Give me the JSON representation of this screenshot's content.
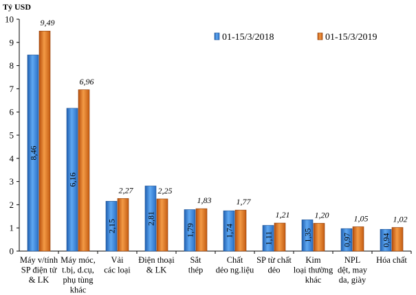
{
  "chart_data": {
    "type": "bar",
    "unit_label": "Tỷ USD",
    "ylim": [
      0,
      10
    ],
    "yticks": [
      "0",
      "1",
      "2",
      "3",
      "4",
      "5",
      "6",
      "7",
      "8",
      "9",
      "10"
    ],
    "grid": false,
    "legend_position": "top-right",
    "categories": [
      [
        "Máy v/tính",
        "SP điện tử",
        "& LK"
      ],
      [
        "Máy móc,",
        "t.bị, d.cụ,",
        "phụ tùng",
        "khác"
      ],
      [
        "Vải",
        "các loại"
      ],
      [
        "Điện thoại",
        "& LK"
      ],
      [
        "Sắt",
        "thép"
      ],
      [
        "Chất",
        "dẻo ng.liệu"
      ],
      [
        "SP từ chất",
        "dẻo"
      ],
      [
        "Kim",
        "loại thường",
        "khác"
      ],
      [
        "NPL",
        "dệt, may",
        "da, giày"
      ],
      [
        "Hóa chất"
      ]
    ],
    "series": [
      {
        "name": "01-15/3/2018",
        "color": "#3a8ee6",
        "values": [
          8.46,
          6.16,
          2.15,
          2.81,
          1.79,
          1.74,
          1.11,
          1.35,
          0.97,
          0.94
        ],
        "labels": [
          "8,46",
          "6,16",
          "2,15",
          "2,81",
          "1,79",
          "1,74",
          "1,11",
          "1,35",
          "0,97",
          "0,94"
        ]
      },
      {
        "name": "01-15/3/2019",
        "color": "#e87722",
        "values": [
          9.49,
          6.96,
          2.27,
          2.25,
          1.83,
          1.77,
          1.21,
          1.2,
          1.05,
          1.02
        ],
        "labels": [
          "9,49",
          "6,96",
          "2,27",
          "2,25",
          "1,83",
          "1,77",
          "1,21",
          "1,20",
          "1,05",
          "1,02"
        ]
      }
    ]
  }
}
